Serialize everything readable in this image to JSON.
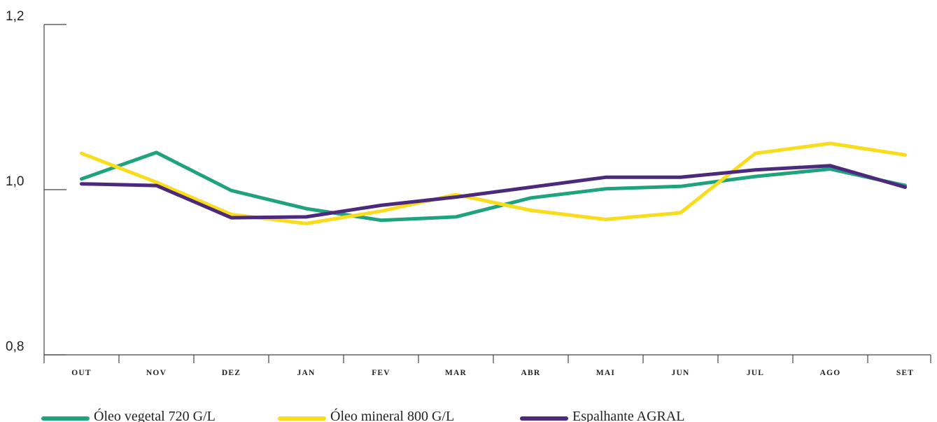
{
  "chart_data": {
    "type": "line",
    "title": "",
    "xlabel": "",
    "ylabel": "",
    "categories": [
      "OUT",
      "NOV",
      "DEZ",
      "JAN",
      "FEV",
      "MAR",
      "ABR",
      "MAI",
      "JUN",
      "JUL",
      "AGO",
      "SET"
    ],
    "y_ticks": [
      "0,8",
      "1,0",
      "1,2"
    ],
    "ylim": [
      0.8,
      1.2
    ],
    "grid": false,
    "legend_position": "bottom-left",
    "series": [
      {
        "name": "Óleo vegetal 720 G/L",
        "color": "#1fa37f",
        "values": [
          1.013,
          1.045,
          0.999,
          0.977,
          0.963,
          0.967,
          0.99,
          1.001,
          1.004,
          1.016,
          1.025,
          1.005
        ]
      },
      {
        "name": "Óleo mineral 800 G/L",
        "color": "#f9dc1c",
        "values": [
          1.044,
          1.009,
          0.97,
          0.959,
          0.974,
          0.994,
          0.975,
          0.964,
          0.972,
          1.044,
          1.056,
          1.042
        ]
      },
      {
        "name": "Espalhante AGRAL",
        "color": "#4b2a7d",
        "values": [
          1.007,
          1.005,
          0.966,
          0.967,
          0.981,
          0.991,
          1.003,
          1.015,
          1.015,
          1.024,
          1.029,
          1.003
        ]
      }
    ]
  }
}
